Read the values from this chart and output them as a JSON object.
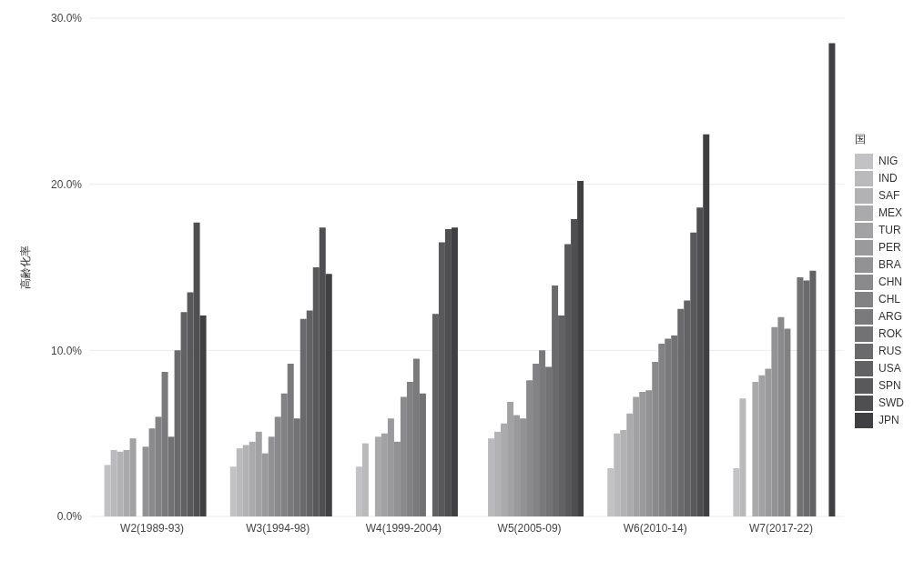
{
  "chart_data": {
    "type": "bar",
    "ylabel": "高齢化率",
    "legend_title": "国",
    "legend": "right",
    "grid": "y",
    "categories": [
      "W2(1989-93)",
      "W3(1994-98)",
      "W4(1999-2004)",
      "W5(2005-09)",
      "W6(2010-14)",
      "W7(2017-22)"
    ],
    "ylim": [
      0,
      30
    ],
    "yticks": [
      {
        "value": 0,
        "label": "0.0%"
      },
      {
        "value": 10,
        "label": "10.0%"
      },
      {
        "value": 20,
        "label": "20.0%"
      },
      {
        "value": 30,
        "label": "30.0%"
      }
    ],
    "series": [
      {
        "name": "NIG",
        "color": "#c2c2c4",
        "values": [
          3.1,
          3.0,
          3.0,
          null,
          2.9,
          2.9
        ]
      },
      {
        "name": "IND",
        "color": "#bababc",
        "values": [
          4.0,
          4.1,
          4.4,
          4.7,
          5.0,
          7.1
        ]
      },
      {
        "name": "SAF",
        "color": "#b2b2b4",
        "values": [
          3.9,
          4.3,
          null,
          5.1,
          5.2,
          null
        ]
      },
      {
        "name": "MEX",
        "color": "#aaaaac",
        "values": [
          4.0,
          4.5,
          4.8,
          5.6,
          6.2,
          8.1
        ]
      },
      {
        "name": "TUR",
        "color": "#a2a2a4",
        "values": [
          4.7,
          5.1,
          5.0,
          6.9,
          7.2,
          8.5
        ]
      },
      {
        "name": "PER",
        "color": "#9a9a9c",
        "values": [
          null,
          3.8,
          5.9,
          6.1,
          7.5,
          8.9
        ]
      },
      {
        "name": "BRA",
        "color": "#929294",
        "values": [
          4.2,
          4.8,
          4.5,
          5.9,
          7.6,
          11.4
        ]
      },
      {
        "name": "CHN",
        "color": "#8a8a8c",
        "values": [
          5.3,
          6.0,
          7.2,
          8.2,
          9.3,
          12.0
        ]
      },
      {
        "name": "CHL",
        "color": "#828284",
        "values": [
          6.0,
          7.4,
          8.1,
          9.2,
          10.4,
          11.3
        ]
      },
      {
        "name": "ARG",
        "color": "#7a7a7c",
        "values": [
          8.7,
          9.2,
          9.5,
          10.0,
          10.7,
          null
        ]
      },
      {
        "name": "ROK",
        "color": "#727274",
        "values": [
          4.8,
          5.9,
          7.4,
          9.0,
          10.9,
          14.4
        ]
      },
      {
        "name": "RUS",
        "color": "#6a6a6c",
        "values": [
          10.0,
          11.9,
          null,
          13.9,
          12.5,
          14.2
        ]
      },
      {
        "name": "USA",
        "color": "#626264",
        "values": [
          12.3,
          12.4,
          12.2,
          12.1,
          13.0,
          14.8
        ]
      },
      {
        "name": "SPN",
        "color": "#59595b",
        "values": [
          13.5,
          15.0,
          16.5,
          16.4,
          17.1,
          null
        ]
      },
      {
        "name": "SWD",
        "color": "#4f4f51",
        "values": [
          17.7,
          17.4,
          17.3,
          17.9,
          18.6,
          null
        ]
      },
      {
        "name": "JPN",
        "color": "#404042",
        "values": [
          12.1,
          14.6,
          17.4,
          20.2,
          23.0,
          28.5
        ]
      }
    ]
  }
}
